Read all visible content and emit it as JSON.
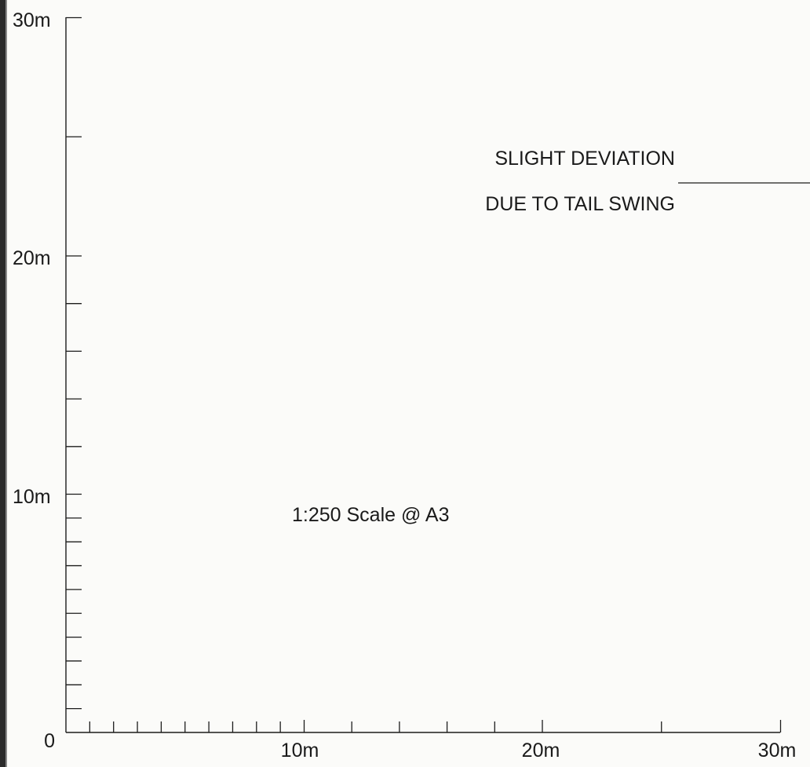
{
  "drawing": {
    "scale_note": "1:250 Scale @ A3",
    "annotation": {
      "line1": "SLIGHT DEVIATION",
      "line2": "DUE TO TAIL SWING"
    }
  },
  "axes": {
    "origin_label": "0",
    "x_labels": [
      {
        "value": 10,
        "text": "10m"
      },
      {
        "value": 20,
        "text": "20m"
      },
      {
        "value": 30,
        "text": "30m"
      }
    ],
    "y_labels": [
      {
        "value": 10,
        "text": "10m"
      },
      {
        "value": 20,
        "text": "20m"
      },
      {
        "value": 30,
        "text": "30m"
      }
    ],
    "x_ticks_m": [
      1,
      2,
      3,
      4,
      5,
      6,
      7,
      8,
      9,
      10,
      12,
      14,
      16,
      18,
      20,
      25,
      30
    ],
    "y_ticks_m": [
      1,
      2,
      3,
      4,
      5,
      6,
      7,
      8,
      9,
      10,
      12,
      14,
      16,
      18,
      20,
      25,
      30
    ],
    "range_m": [
      0,
      30
    ],
    "colors": {
      "ink": "#1c1c1c",
      "paper": "#fbfbf9",
      "frame": "#2b2b2b"
    }
  }
}
